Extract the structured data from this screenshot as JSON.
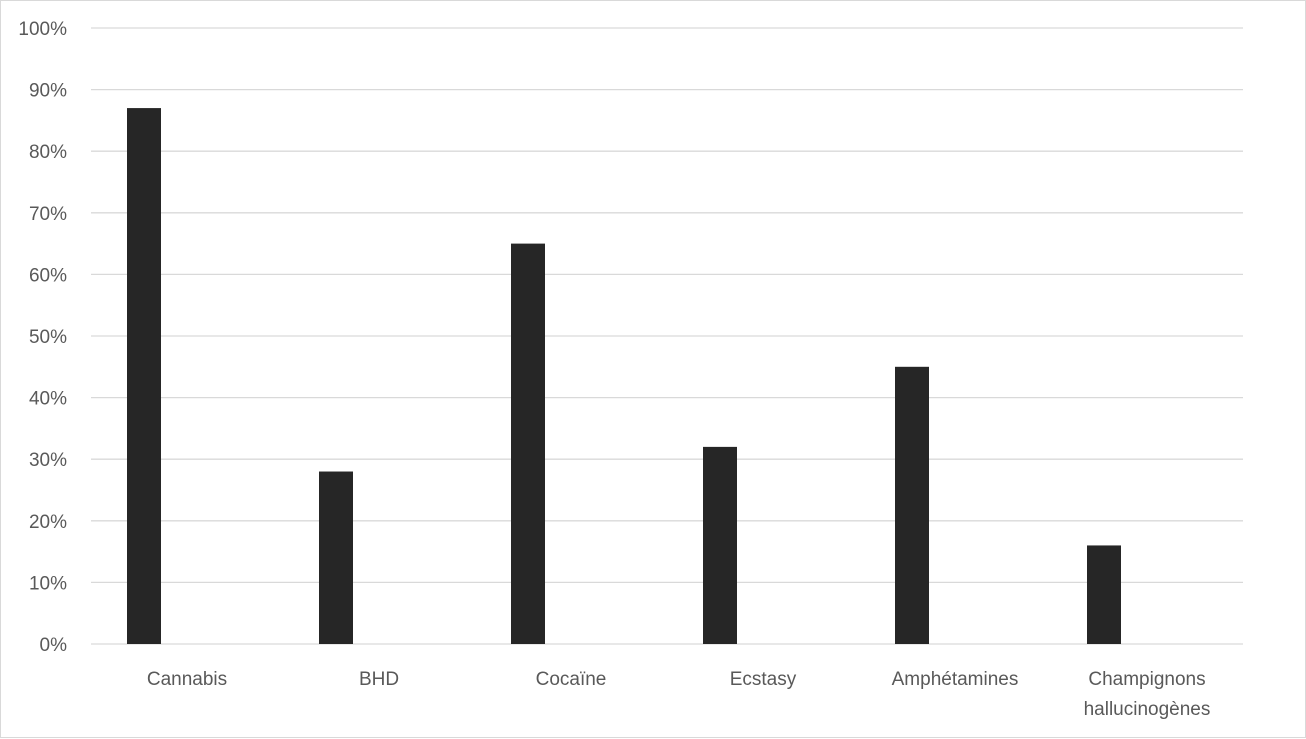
{
  "chart_data": {
    "type": "bar",
    "title": "",
    "xlabel": "",
    "ylabel": "",
    "categories": [
      "Cannabis",
      "BHD",
      "Cocaïne",
      "Ecstasy",
      "Amphétamines",
      "Champignons hallucinogènes"
    ],
    "category_lines": [
      [
        "Cannabis"
      ],
      [
        "BHD"
      ],
      [
        "Cocaïne"
      ],
      [
        "Ecstasy"
      ],
      [
        "Amphétamines"
      ],
      [
        "Champignons",
        "hallucinogènes"
      ]
    ],
    "values": [
      87,
      28,
      65,
      32,
      45,
      16
    ],
    "ylim": [
      0,
      100
    ],
    "yticks": [
      "0%",
      "10%",
      "20%",
      "30%",
      "40%",
      "50%",
      "60%",
      "70%",
      "80%",
      "90%",
      "100%"
    ],
    "grid": true,
    "legend": "none",
    "colors": {
      "bar": "#262626",
      "grid": "#d9d9d9",
      "text": "#595959"
    }
  }
}
